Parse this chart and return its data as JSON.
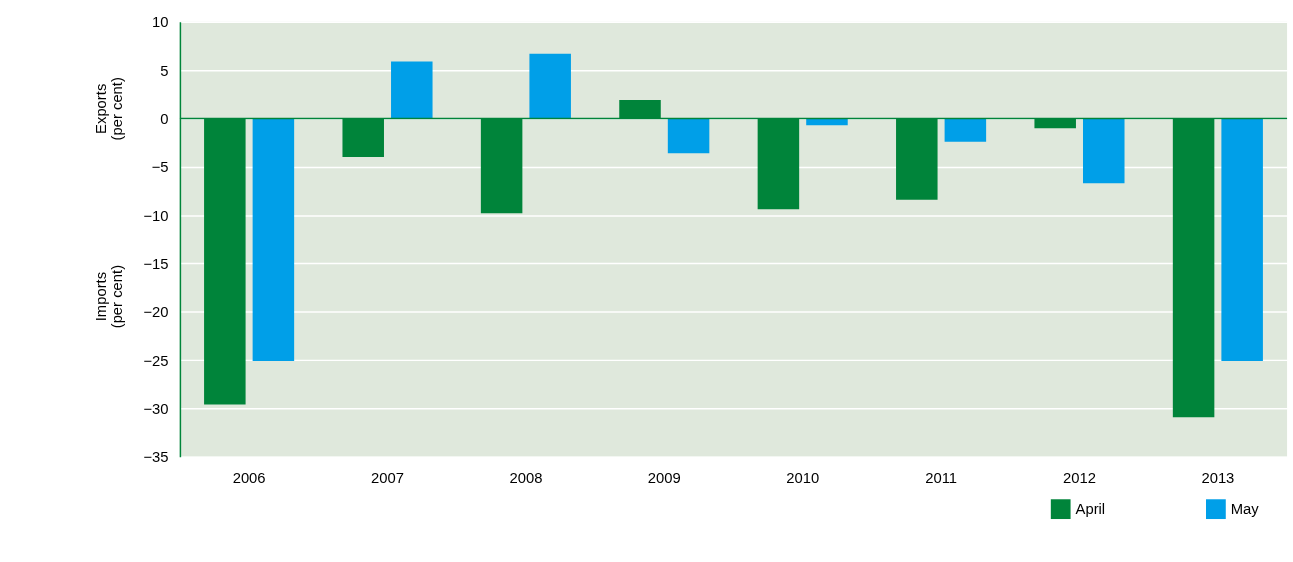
{
  "chart_data": {
    "type": "bar",
    "categories": [
      "2006",
      "2007",
      "2008",
      "2009",
      "2010",
      "2011",
      "2012",
      "2013"
    ],
    "series": [
      {
        "name": "April",
        "color": "#00843a",
        "values": [
          -29.6,
          -4.0,
          -9.8,
          1.9,
          -9.4,
          -8.4,
          -1.0,
          -30.9
        ]
      },
      {
        "name": "May",
        "color": "#009fe8",
        "values": [
          -25.1,
          5.9,
          6.7,
          -3.6,
          -0.7,
          -2.4,
          -6.7,
          -25.1
        ]
      }
    ],
    "annotations": [
      "Exports\n(per cent)",
      "Imports\n(per cent)"
    ],
    "ylim": [
      -35,
      10
    ],
    "yticks": [
      -35,
      -30,
      -25,
      -20,
      -15,
      -10,
      -5,
      0,
      5,
      10
    ],
    "ref_lines": [
      {
        "axis": "y",
        "value": 0,
        "color": "#00843a"
      }
    ],
    "grid": "y",
    "legend": "bottom right"
  }
}
